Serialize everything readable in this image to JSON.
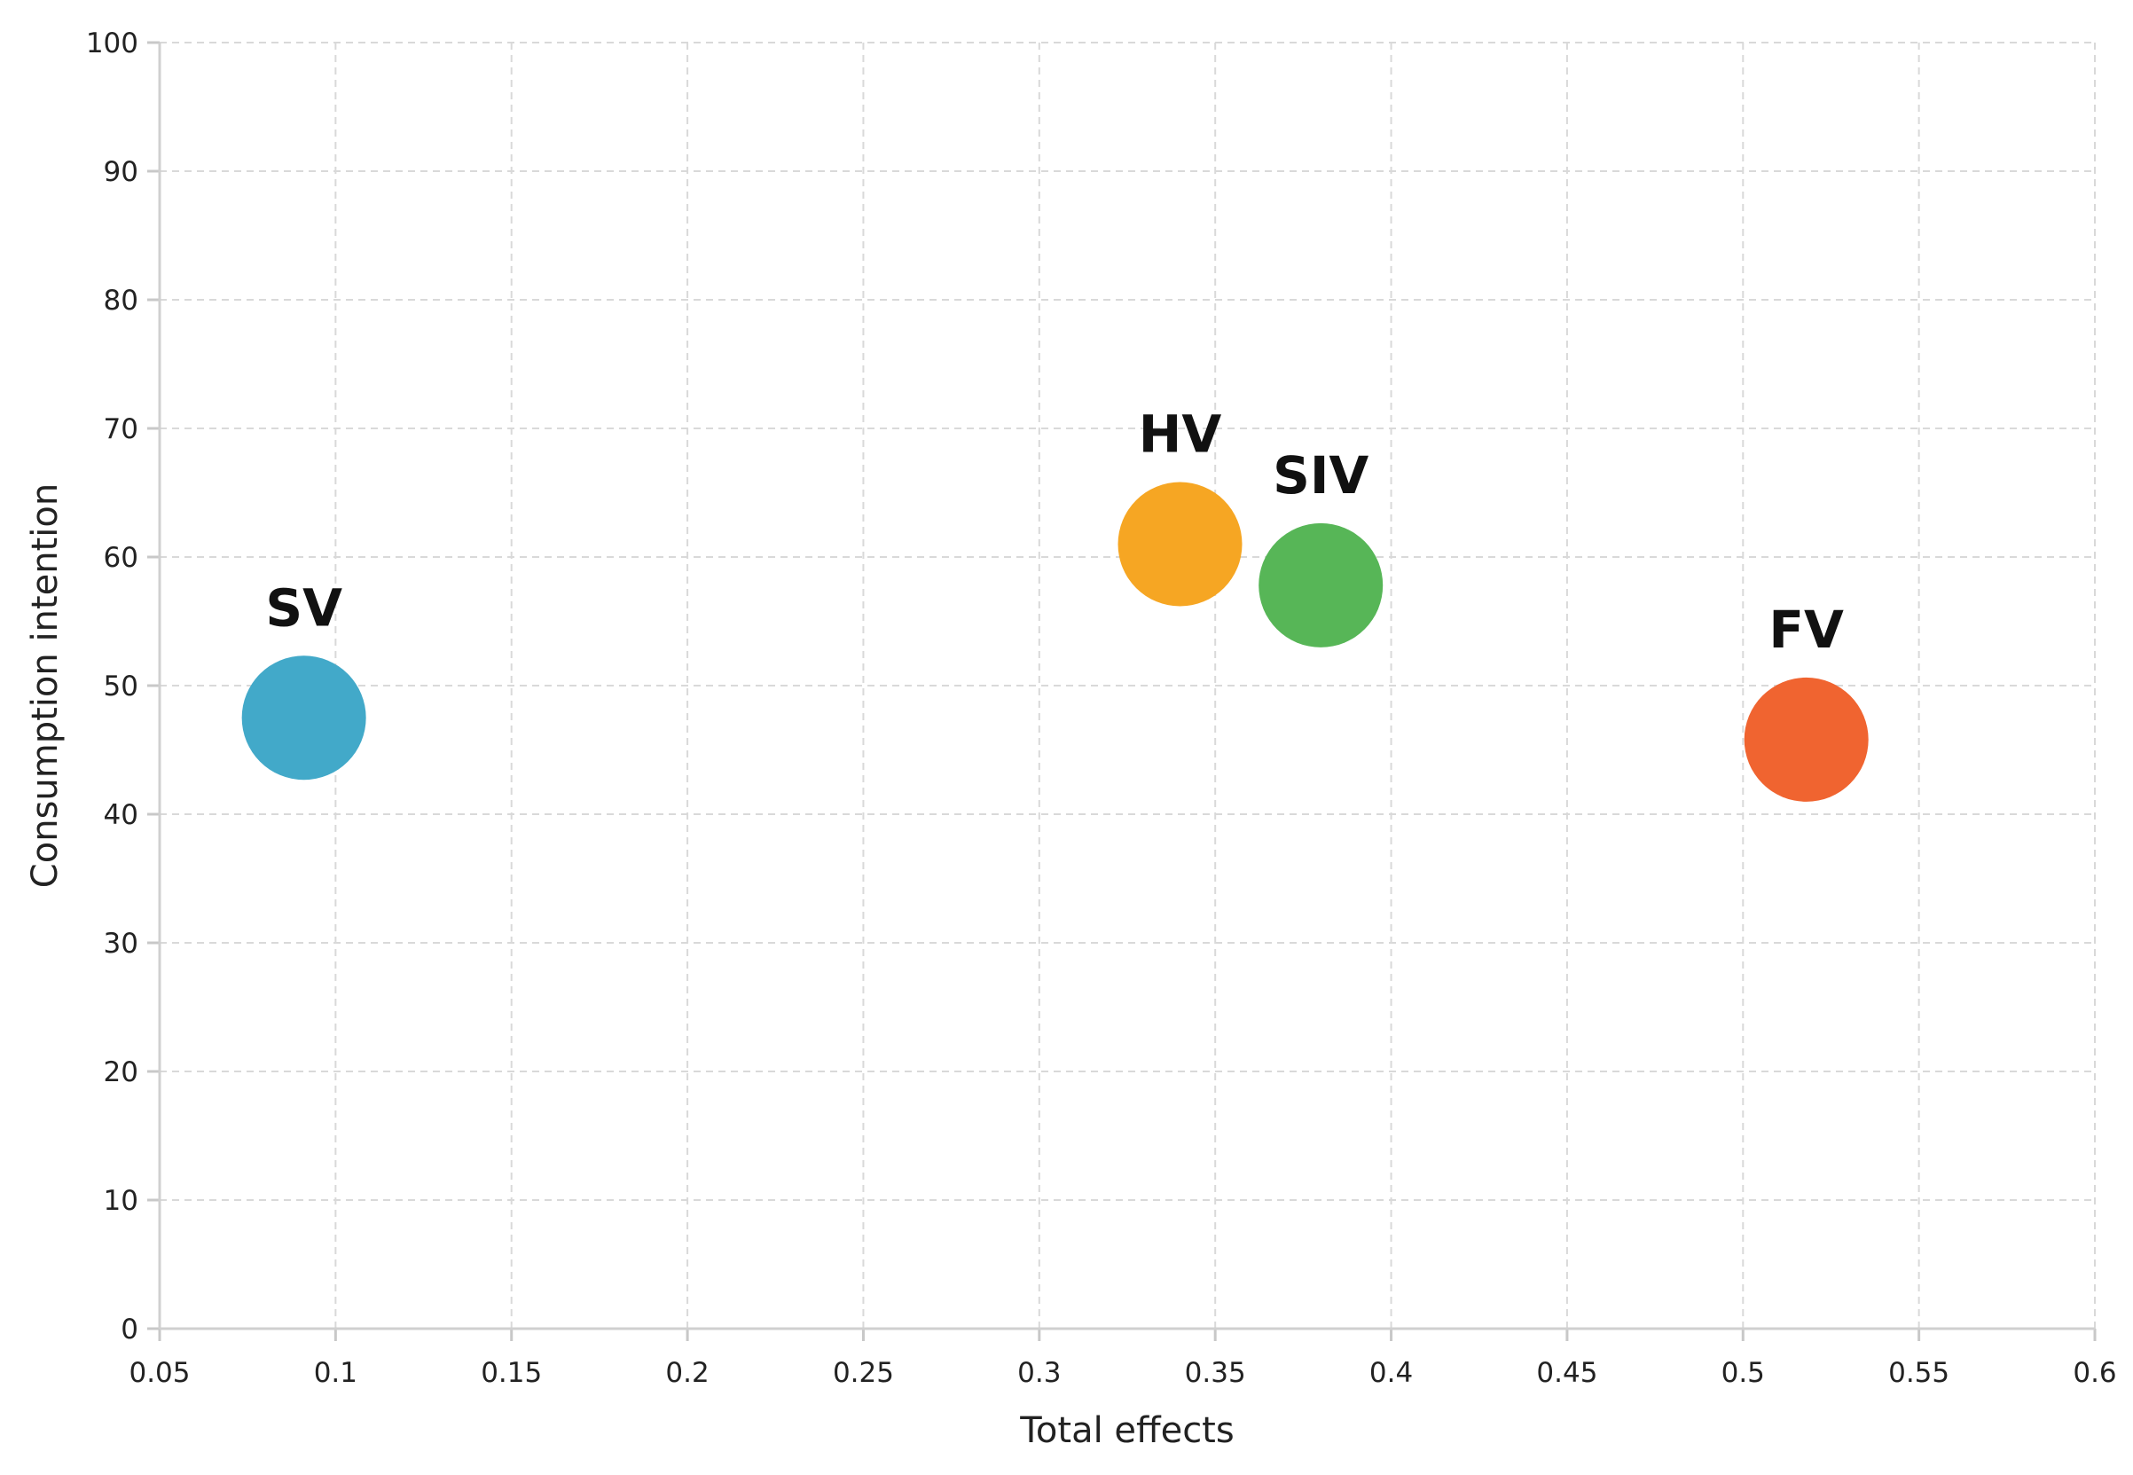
{
  "chart_data": {
    "type": "scatter",
    "title": "",
    "xlabel": "Total effects",
    "ylabel": "Consumption intention",
    "xlim": [
      0.05,
      0.6
    ],
    "ylim": [
      0,
      100
    ],
    "x_ticks": [
      0.05,
      0.1,
      0.15,
      0.2,
      0.25,
      0.3,
      0.35,
      0.4,
      0.45,
      0.5,
      0.55,
      0.6
    ],
    "x_tick_labels": [
      "0.05",
      "0.1",
      "0.15",
      "0.2",
      "0.25",
      "0.3",
      "0.35",
      "0.4",
      "0.45",
      "0.5",
      "0.55",
      "0.6"
    ],
    "y_ticks": [
      0,
      10,
      20,
      30,
      40,
      50,
      60,
      70,
      80,
      90,
      100
    ],
    "y_tick_labels": [
      "0",
      "10",
      "20",
      "30",
      "40",
      "50",
      "60",
      "70",
      "80",
      "90",
      "100"
    ],
    "grid": true,
    "legend": "none",
    "points": [
      {
        "label": "SV",
        "x": 0.091,
        "y": 47.5,
        "color": "#42a9c9"
      },
      {
        "label": "HV",
        "x": 0.34,
        "y": 61.0,
        "color": "#f6a623"
      },
      {
        "label": "SIV",
        "x": 0.38,
        "y": 57.8,
        "color": "#57b657"
      },
      {
        "label": "FV",
        "x": 0.518,
        "y": 45.8,
        "color": "#f06430"
      }
    ]
  }
}
